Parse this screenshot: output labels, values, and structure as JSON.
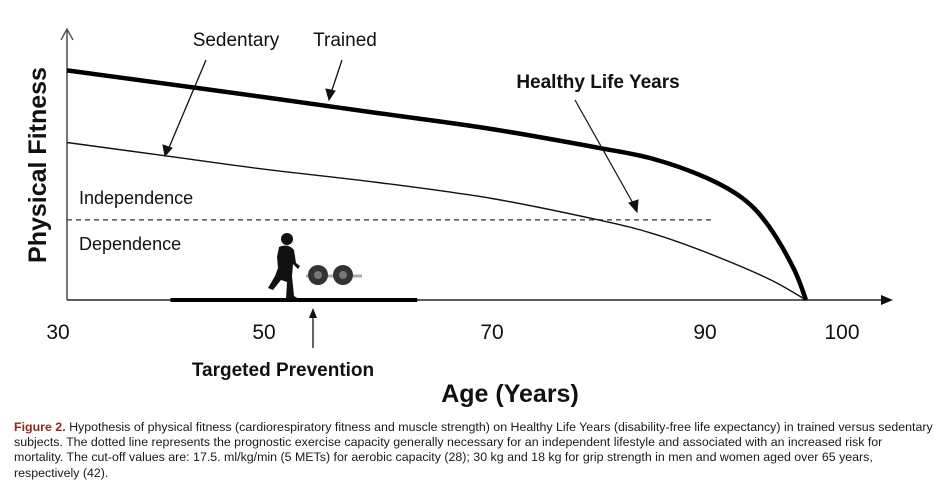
{
  "chart_data": {
    "type": "line",
    "title": "",
    "xlabel": "Age (Years)",
    "ylabel": "Physical Fitness",
    "x_ticks": [
      30,
      50,
      70,
      90,
      100
    ],
    "x_tick_labels": [
      "30",
      "50",
      "70",
      "90",
      "100"
    ],
    "xlim": [
      30,
      100
    ],
    "ylim": [
      0,
      1
    ],
    "grid": false,
    "series": [
      {
        "name": "Trained",
        "style": "thick",
        "x": [
          30,
          40,
          50,
          60,
          70,
          80,
          85,
          90,
          93,
          95,
          97,
          98
        ],
        "y": [
          0.86,
          0.81,
          0.76,
          0.7,
          0.64,
          0.57,
          0.53,
          0.46,
          0.38,
          0.28,
          0.12,
          0.0
        ]
      },
      {
        "name": "Sedentary",
        "style": "thin",
        "x": [
          30,
          40,
          50,
          60,
          70,
          80,
          85,
          90,
          95,
          98
        ],
        "y": [
          0.59,
          0.54,
          0.49,
          0.44,
          0.38,
          0.3,
          0.25,
          0.18,
          0.08,
          0.0
        ]
      }
    ],
    "threshold": {
      "y": 0.3,
      "x_start": 30,
      "x_end": 95,
      "style": "dashed"
    },
    "region_labels": {
      "above": "Independence",
      "below": "Dependence"
    },
    "targeted_prevention": {
      "x_start": 40,
      "x_end": 63,
      "arrow_x": 54,
      "label": "Targeted Prevention"
    },
    "annotations": [
      {
        "text": "Sedentary",
        "bold": false,
        "points_to": "Sedentary"
      },
      {
        "text": "Trained",
        "bold": false,
        "points_to": "Trained"
      },
      {
        "text": "Healthy Life Years",
        "bold": true,
        "points_to": "gap between curves"
      }
    ],
    "icons": [
      "runner-silhouette-icon",
      "dumbbell-icon"
    ]
  },
  "caption": {
    "figure_label": "Figure 2.",
    "text": " Hypothesis of physical fitness (cardiorespiratory fitness and muscle strength) on Healthy Life Years (disability-free life expectancy) in trained versus sedentary subjects. The dotted line represents the prognostic exercise capacity generally necessary for an independent lifestyle and associated with an increased risk for mortality. The cut-off values are: 17.5. ml/kg/min (5 METs) for aerobic capacity (28); 30 kg and 18 kg for grip strength in men and women aged over 65 years, respectively (42).",
    "label_color": "#8b2a1e"
  }
}
